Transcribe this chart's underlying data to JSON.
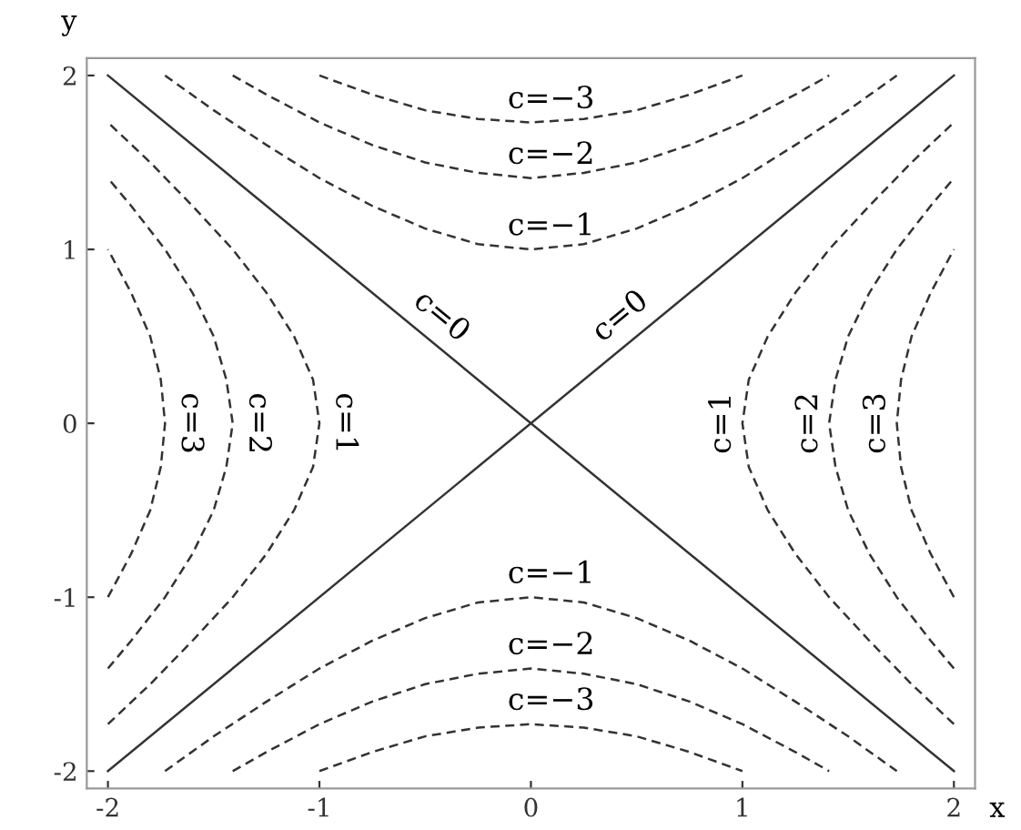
{
  "chart_data": {
    "type": "line",
    "xlabel": "x",
    "ylabel": "y",
    "xlim": [
      -2.1,
      2.1
    ],
    "ylim": [
      -2.1,
      2.1
    ],
    "xticks": [
      -2,
      -1,
      0,
      1,
      2
    ],
    "yticks": [
      -2,
      -1,
      0,
      1,
      2
    ],
    "grid": false,
    "legend": false,
    "marker": "none",
    "series": [
      {
        "color": "#333333",
        "line_style": "dashed",
        "x": [
          -1,
          -0.75,
          -0.5,
          -0.25,
          0,
          0.25,
          0.5,
          0.75,
          1
        ],
        "values": [
          2,
          1.89,
          1.8,
          1.75,
          1.73,
          1.75,
          1.8,
          1.89,
          2
        ]
      },
      {
        "color": "#333333",
        "line_style": "dashed",
        "x": [
          -1.41,
          -1.25,
          -1,
          -0.75,
          -0.5,
          -0.25,
          0,
          0.25,
          0.5,
          0.75,
          1,
          1.25,
          1.41
        ],
        "values": [
          2,
          1.89,
          1.73,
          1.6,
          1.5,
          1.44,
          1.41,
          1.44,
          1.5,
          1.6,
          1.73,
          1.89,
          2
        ]
      },
      {
        "color": "#333333",
        "line_style": "dashed",
        "x": [
          -1.73,
          -1.5,
          -1.25,
          -1,
          -0.75,
          -0.5,
          -0.25,
          0,
          0.25,
          0.5,
          0.75,
          1,
          1.25,
          1.5,
          1.73
        ],
        "values": [
          2,
          1.8,
          1.6,
          1.41,
          1.25,
          1.12,
          1.03,
          1,
          1.03,
          1.12,
          1.25,
          1.41,
          1.6,
          1.8,
          2
        ]
      },
      {
        "color": "#333333",
        "line_style": "dashed",
        "x": [
          -1,
          -0.75,
          -0.5,
          -0.25,
          0,
          0.25,
          0.5,
          0.75,
          1
        ],
        "values": [
          -2,
          -1.89,
          -1.8,
          -1.75,
          -1.73,
          -1.75,
          -1.8,
          -1.89,
          -2
        ]
      },
      {
        "color": "#333333",
        "line_style": "dashed",
        "x": [
          -1.41,
          -1.25,
          -1,
          -0.75,
          -0.5,
          -0.25,
          0,
          0.25,
          0.5,
          0.75,
          1,
          1.25,
          1.41
        ],
        "values": [
          -2,
          -1.89,
          -1.73,
          -1.6,
          -1.5,
          -1.44,
          -1.41,
          -1.44,
          -1.5,
          -1.6,
          -1.73,
          -1.89,
          -2
        ]
      },
      {
        "color": "#333333",
        "line_style": "dashed",
        "x": [
          -1.73,
          -1.5,
          -1.25,
          -1,
          -0.75,
          -0.5,
          -0.25,
          0,
          0.25,
          0.5,
          0.75,
          1,
          1.25,
          1.5,
          1.73
        ],
        "values": [
          -2,
          -1.8,
          -1.6,
          -1.41,
          -1.25,
          -1.12,
          -1.03,
          -1,
          -1.03,
          -1.12,
          -1.25,
          -1.41,
          -1.6,
          -1.8,
          -2
        ]
      },
      {
        "color": "#333333",
        "line_style": "dashed",
        "x": [
          2,
          1.89,
          1.8,
          1.75,
          1.73,
          1.75,
          1.8,
          1.89,
          2
        ],
        "values": [
          -1,
          -0.75,
          -0.5,
          -0.25,
          0,
          0.25,
          0.5,
          0.75,
          1
        ]
      },
      {
        "color": "#333333",
        "line_style": "dashed",
        "x": [
          2,
          1.89,
          1.73,
          1.6,
          1.5,
          1.44,
          1.41,
          1.44,
          1.5,
          1.6,
          1.73,
          1.89,
          2
        ],
        "values": [
          -1.41,
          -1.25,
          -1,
          -0.75,
          -0.5,
          -0.25,
          0,
          0.25,
          0.5,
          0.75,
          1,
          1.25,
          1.41
        ]
      },
      {
        "color": "#333333",
        "line_style": "dashed",
        "x": [
          2,
          1.8,
          1.6,
          1.41,
          1.25,
          1.12,
          1.03,
          1,
          1.03,
          1.12,
          1.25,
          1.41,
          1.6,
          1.8,
          2
        ],
        "values": [
          -1.73,
          -1.5,
          -1.25,
          -1,
          -0.75,
          -0.5,
          -0.25,
          0,
          0.25,
          0.5,
          0.75,
          1,
          1.25,
          1.5,
          1.73
        ]
      },
      {
        "color": "#333333",
        "line_style": "dashed",
        "x": [
          -2,
          -1.89,
          -1.8,
          -1.75,
          -1.73,
          -1.75,
          -1.8,
          -1.89,
          -2
        ],
        "values": [
          -1,
          -0.75,
          -0.5,
          -0.25,
          0,
          0.25,
          0.5,
          0.75,
          1
        ]
      },
      {
        "color": "#333333",
        "line_style": "dashed",
        "x": [
          -2,
          -1.89,
          -1.73,
          -1.6,
          -1.5,
          -1.44,
          -1.41,
          -1.44,
          -1.5,
          -1.6,
          -1.73,
          -1.89,
          -2
        ],
        "values": [
          -1.41,
          -1.25,
          -1,
          -0.75,
          -0.5,
          -0.25,
          0,
          0.25,
          0.5,
          0.75,
          1,
          1.25,
          1.41
        ]
      },
      {
        "color": "#333333",
        "line_style": "dashed",
        "x": [
          -2,
          -1.8,
          -1.6,
          -1.41,
          -1.25,
          -1.12,
          -1.03,
          -1,
          -1.03,
          -1.12,
          -1.25,
          -1.41,
          -1.6,
          -1.8,
          -2
        ],
        "values": [
          -1.73,
          -1.5,
          -1.25,
          -1,
          -0.75,
          -0.5,
          -0.25,
          0,
          0.25,
          0.5,
          0.75,
          1,
          1.25,
          1.5,
          1.73
        ]
      },
      {
        "color": "#333333",
        "line_style": "solid",
        "x": [
          -2,
          2
        ],
        "values": [
          -2,
          2
        ]
      },
      {
        "color": "#333333",
        "line_style": "solid",
        "x": [
          -2,
          2
        ],
        "values": [
          2,
          -2
        ]
      }
    ],
    "annotations": [
      {
        "text": "c=−3",
        "x": 0,
        "y": 1.73
      },
      {
        "text": "c=−2",
        "x": 0,
        "y": 1.41
      },
      {
        "text": "c=−1",
        "x": 0,
        "y": 1
      },
      {
        "text": "c=−1",
        "x": 0,
        "y": -1
      },
      {
        "text": "c=−2",
        "x": 0,
        "y": -1.41
      },
      {
        "text": "c=−3",
        "x": 0,
        "y": -1.73
      },
      {
        "text": "c=0",
        "x": -0.5,
        "y": 0.5
      },
      {
        "text": "c=0",
        "x": 0.5,
        "y": 0.5
      },
      {
        "text": "c=3",
        "x": -1.73,
        "y": 0
      },
      {
        "text": "c=2",
        "x": -1.41,
        "y": 0
      },
      {
        "text": "c=1",
        "x": -1,
        "y": 0
      },
      {
        "text": "c=1",
        "x": 1,
        "y": 0
      },
      {
        "text": "c=2",
        "x": 1.41,
        "y": 0
      },
      {
        "text": "c=3",
        "x": 1.73,
        "y": 0
      }
    ]
  }
}
